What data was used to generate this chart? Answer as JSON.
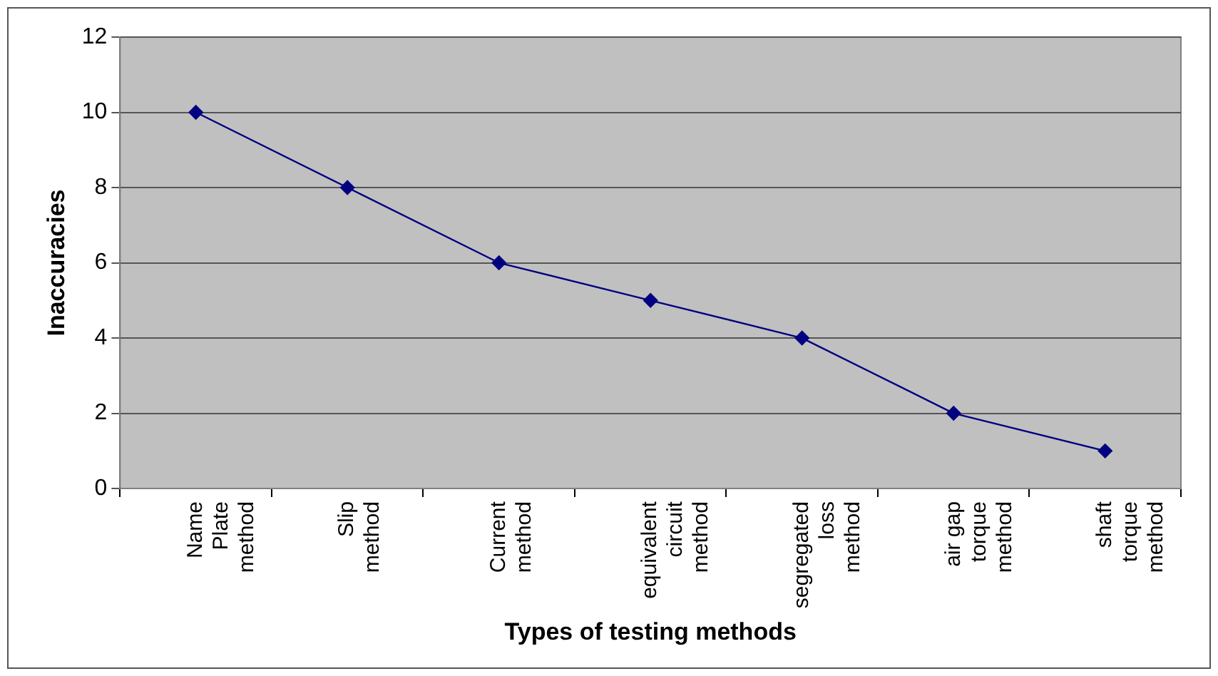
{
  "chart_data": {
    "type": "line",
    "xlabel": "Types of testing methods",
    "ylabel": "Inaccuracies",
    "categories": [
      "Name Plate method",
      "Slip method",
      "Current method",
      "equivalent circuit method",
      "segregated loss method",
      "air gap torque method",
      "shaft torque method"
    ],
    "series": [
      {
        "color": "#000080",
        "values": [
          10,
          8,
          6,
          5,
          4,
          2,
          1
        ]
      }
    ],
    "ylim": [
      0,
      12
    ],
    "yticks": [
      0,
      2,
      4,
      6,
      8,
      10,
      12
    ],
    "grid": "y",
    "legend": false,
    "marker": "diamond",
    "line_style": "solid"
  }
}
